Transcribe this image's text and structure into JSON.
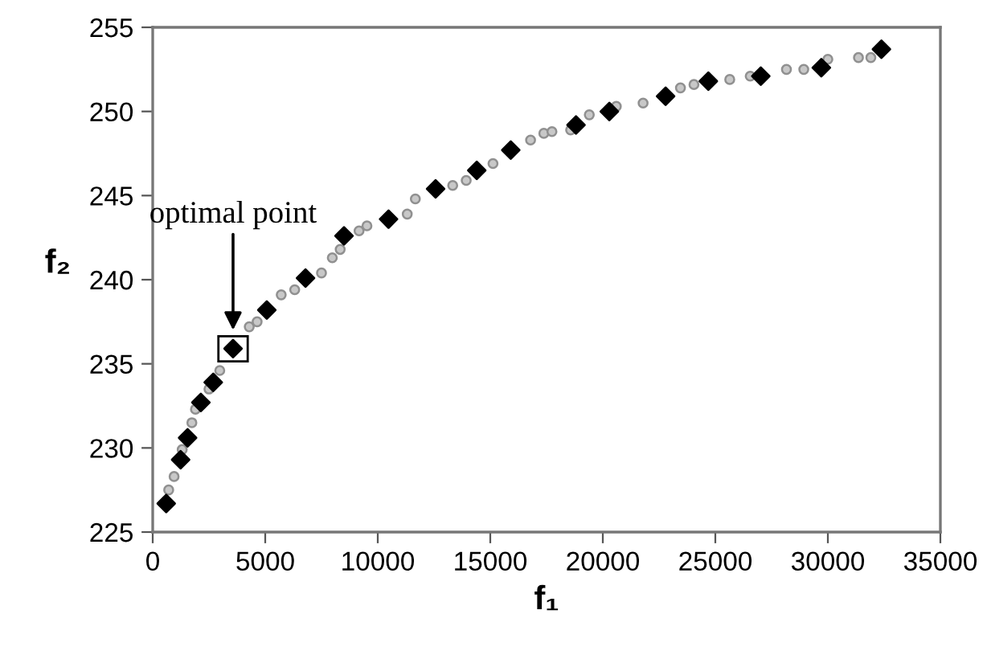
{
  "chart_data": {
    "type": "scatter",
    "xlabel": "f₁",
    "ylabel": "f₂",
    "xlim": [
      0,
      35000
    ],
    "xticks": [
      0,
      5000,
      10000,
      15000,
      20000,
      25000,
      30000,
      35000
    ],
    "ylim": [
      225,
      255
    ],
    "yticks": [
      225,
      230,
      235,
      240,
      245,
      250,
      255
    ],
    "grid": false,
    "annotations": [
      "optimal point"
    ],
    "series": [
      {
        "color": "#909090",
        "marker": "circle",
        "x": [
          710,
          950,
          1310,
          1740,
          1900,
          2500,
          2980,
          4290,
          4640,
          5710,
          6310,
          7500,
          7980,
          8330,
          9170,
          9520,
          11310,
          11670,
          13330,
          13930,
          15120,
          16790,
          17380,
          17740,
          18570,
          19400,
          20600,
          21790,
          23450,
          24050,
          25640,
          26550,
          28160,
          28930,
          30000,
          31360,
          31910
        ],
        "values": [
          227.5,
          228.3,
          229.9,
          231.5,
          232.3,
          233.5,
          234.6,
          237.2,
          237.5,
          239.1,
          239.4,
          240.4,
          241.3,
          241.8,
          242.9,
          243.2,
          243.9,
          244.8,
          245.6,
          245.9,
          246.9,
          248.3,
          248.7,
          248.8,
          248.9,
          249.8,
          250.3,
          250.5,
          251.4,
          251.6,
          251.9,
          252.1,
          252.5,
          252.5,
          253.1,
          253.2,
          253.2
        ]
      },
      {
        "color": "#000000",
        "marker": "diamond",
        "x": [
          600,
          1240,
          1550,
          2140,
          2690,
          3570,
          5070,
          6790,
          8500,
          10480,
          12570,
          14400,
          15910,
          18810,
          20290,
          22790,
          24690,
          27020,
          29710,
          32380
        ],
        "values": [
          226.7,
          229.3,
          230.6,
          232.7,
          233.9,
          235.9,
          238.2,
          240.1,
          242.6,
          243.6,
          245.4,
          246.5,
          247.7,
          249.2,
          250.0,
          250.9,
          251.8,
          252.1,
          252.6,
          253.7
        ]
      }
    ]
  }
}
